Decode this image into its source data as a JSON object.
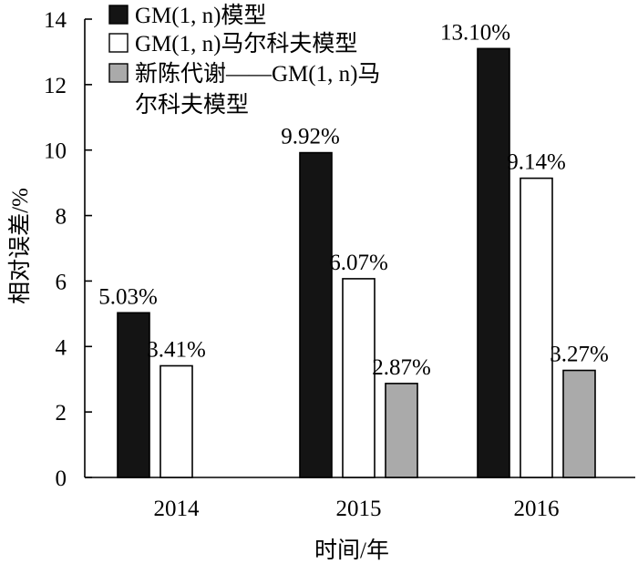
{
  "chart_data": {
    "type": "bar",
    "categories": [
      "2014",
      "2015",
      "2016"
    ],
    "series": [
      {
        "name": "GM(1, n)模型",
        "color": "#141414",
        "values": [
          5.03,
          9.92,
          13.1
        ],
        "labels": [
          "5.03%",
          "9.92%",
          "13.10%"
        ]
      },
      {
        "name": "GM(1, n)马尔科夫模型",
        "color": "#ffffff",
        "values": [
          3.41,
          6.07,
          9.14
        ],
        "labels": [
          "3.41%",
          "6.07%",
          "9.14%"
        ]
      },
      {
        "name": "新陈代谢——GM(1, n)马尔科夫模型",
        "legend_lines": [
          "新陈代谢——GM(1, n)马",
          "尔科夫模型"
        ],
        "color": "#aaaaaa",
        "values": [
          null,
          2.87,
          3.27
        ],
        "labels": [
          null,
          "2.87%",
          "3.27%"
        ]
      }
    ],
    "xlabel": "时间/年",
    "ylabel": "相对误差/%",
    "ylim": [
      0,
      14
    ],
    "yticks": [
      0,
      2,
      4,
      6,
      8,
      10,
      12,
      14
    ],
    "ytick_labels": [
      "0",
      "2",
      "4",
      "6",
      "8",
      "10",
      "12",
      "14"
    ],
    "grid": false,
    "legend_position": "top-left"
  }
}
